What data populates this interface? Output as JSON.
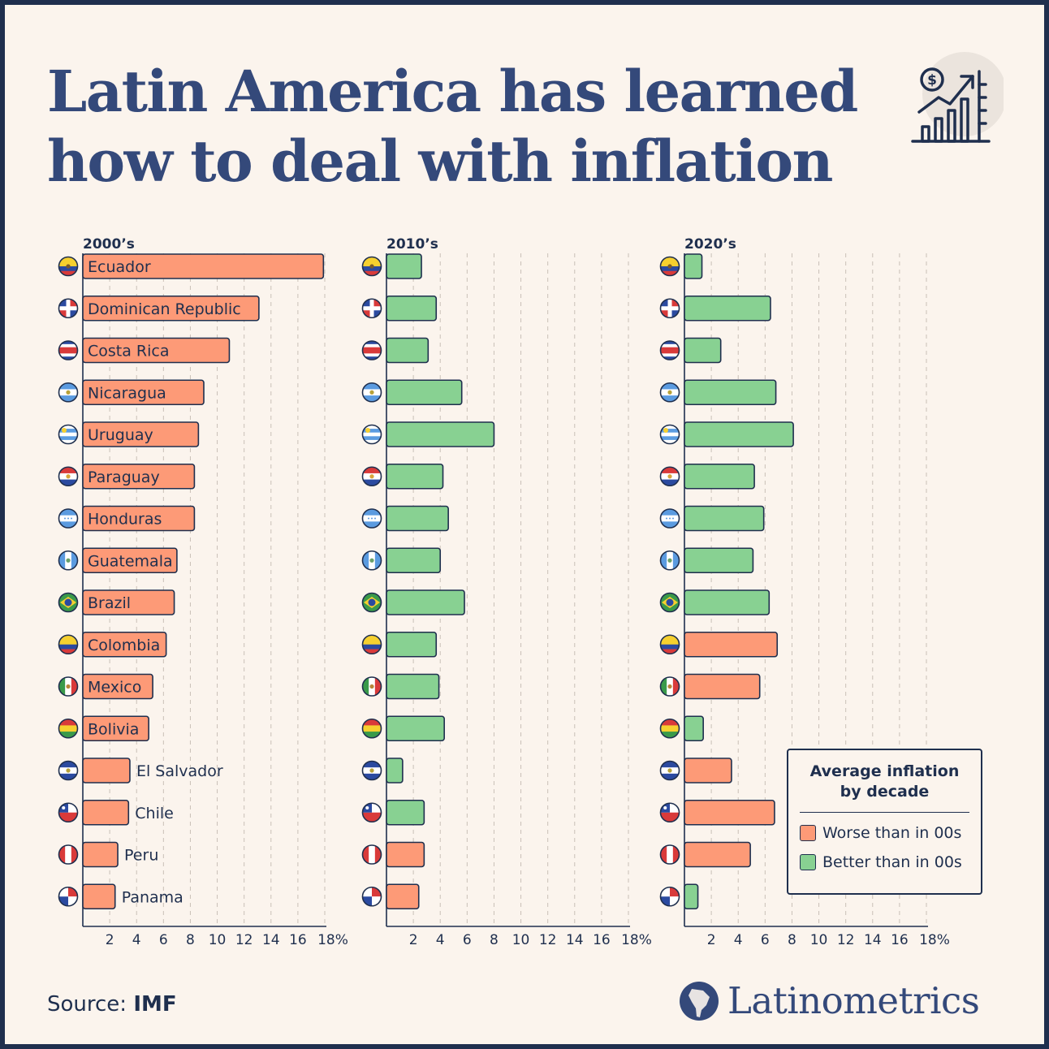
{
  "title_lines": [
    "Latin America has learned",
    "how to deal with inflation"
  ],
  "header_icon": "dollar-growth-chart-icon",
  "source": {
    "label": "Source:",
    "value": "IMF"
  },
  "brand": {
    "name": "Latinometrics",
    "icon": "latin-america-map-icon"
  },
  "colors": {
    "worse": "#fd9a77",
    "better": "#88d192",
    "ink": "#1f2f4e",
    "title": "#34497a",
    "background": "#fbf4ed"
  },
  "legend": {
    "title": "Average inflation\nby decade",
    "items": [
      {
        "label": "Worse than in 00s",
        "color": "#fd9a77"
      },
      {
        "label": "Better than in 00s",
        "color": "#88d192"
      }
    ]
  },
  "chart_data": [
    {
      "type": "bar",
      "orientation": "horizontal",
      "title": "2000’s",
      "categories": [
        "Ecuador",
        "Dominican Republic",
        "Costa Rica",
        "Nicaragua",
        "Uruguay",
        "Paraguay",
        "Honduras",
        "Guatemala",
        "Brazil",
        "Colombia",
        "Mexico",
        "Bolivia",
        "El Salvador",
        "Chile",
        "Peru",
        "Panama"
      ],
      "values": [
        17.9,
        13.1,
        10.9,
        9.0,
        8.6,
        8.3,
        8.3,
        7.0,
        6.8,
        6.2,
        5.2,
        4.9,
        3.5,
        3.4,
        2.6,
        2.4
      ],
      "status": [
        "worse",
        "worse",
        "worse",
        "worse",
        "worse",
        "worse",
        "worse",
        "worse",
        "worse",
        "worse",
        "worse",
        "worse",
        "worse",
        "worse",
        "worse",
        "worse"
      ],
      "xlim": [
        0,
        18
      ],
      "xticks": [
        "2",
        "4",
        "6",
        "8",
        "10",
        "12",
        "14",
        "16",
        "18%"
      ],
      "grid": true,
      "category_labels": true
    },
    {
      "type": "bar",
      "orientation": "horizontal",
      "title": "2010’s",
      "categories": [
        "Ecuador",
        "Dominican Republic",
        "Costa Rica",
        "Nicaragua",
        "Uruguay",
        "Paraguay",
        "Honduras",
        "Guatemala",
        "Brazil",
        "Colombia",
        "Mexico",
        "Bolivia",
        "El Salvador",
        "Chile",
        "Peru",
        "Panama"
      ],
      "values": [
        2.6,
        3.7,
        3.1,
        5.6,
        8.0,
        4.2,
        4.6,
        4.0,
        5.8,
        3.7,
        3.9,
        4.3,
        1.2,
        2.8,
        2.8,
        2.4
      ],
      "status": [
        "better",
        "better",
        "better",
        "better",
        "better",
        "better",
        "better",
        "better",
        "better",
        "better",
        "better",
        "better",
        "better",
        "better",
        "worse",
        "worse"
      ],
      "xlim": [
        0,
        18
      ],
      "xticks": [
        "2",
        "4",
        "6",
        "8",
        "10",
        "12",
        "14",
        "16",
        "18%"
      ],
      "grid": true,
      "category_labels": false
    },
    {
      "type": "bar",
      "orientation": "horizontal",
      "title": "2020’s",
      "categories": [
        "Ecuador",
        "Dominican Republic",
        "Costa Rica",
        "Nicaragua",
        "Uruguay",
        "Paraguay",
        "Honduras",
        "Guatemala",
        "Brazil",
        "Colombia",
        "Mexico",
        "Bolivia",
        "El Salvador",
        "Chile",
        "Peru",
        "Panama"
      ],
      "values": [
        1.3,
        6.4,
        2.7,
        6.8,
        8.1,
        5.2,
        5.9,
        5.1,
        6.3,
        6.9,
        5.6,
        1.4,
        3.5,
        6.7,
        4.9,
        1.0
      ],
      "status": [
        "better",
        "better",
        "better",
        "better",
        "better",
        "better",
        "better",
        "better",
        "better",
        "worse",
        "worse",
        "better",
        "worse",
        "worse",
        "worse",
        "better"
      ],
      "xlim": [
        0,
        18
      ],
      "xticks": [
        "2",
        "4",
        "6",
        "8",
        "10",
        "12",
        "14",
        "16",
        "18%"
      ],
      "grid": true,
      "category_labels": false
    }
  ]
}
